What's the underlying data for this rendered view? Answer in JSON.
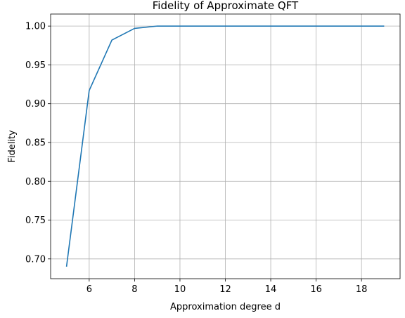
{
  "chart_data": {
    "type": "line",
    "title": "Fidelity of Approximate QFT",
    "xlabel": "Approximation degree d",
    "ylabel": "Fidelity",
    "xlim": [
      4.3,
      19.7
    ],
    "ylim": [
      0.6745,
      1.0155
    ],
    "grid": true,
    "xticks": [
      6,
      8,
      10,
      12,
      14,
      16,
      18
    ],
    "yticks": [
      0.7,
      0.75,
      0.8,
      0.85,
      0.9,
      0.95,
      1.0
    ],
    "x": [
      5,
      6,
      7,
      8,
      9,
      10,
      11,
      12,
      13,
      14,
      15,
      16,
      17,
      18,
      19
    ],
    "series": [
      {
        "color": "#1f77b4",
        "values": [
          0.69,
          0.917,
          0.982,
          0.997,
          1.0,
          1.0,
          1.0,
          1.0,
          1.0,
          1.0,
          1.0,
          1.0,
          1.0,
          1.0,
          1.0
        ]
      }
    ]
  }
}
